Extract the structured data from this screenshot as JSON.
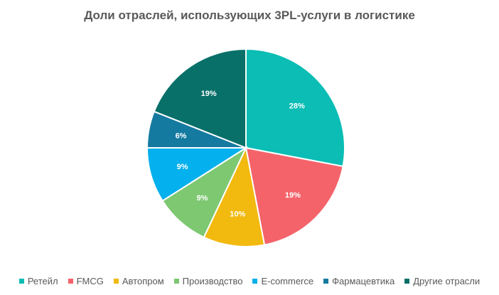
{
  "chart_data": {
    "type": "pie",
    "title": "Доли отраслей, использующих 3PL-услуги в логистике",
    "categories": [
      "Ретейл",
      "FMCG",
      "Автопром",
      "Производство",
      "E-commerce",
      "Фармацевтика",
      "Другие отрасли"
    ],
    "values": [
      28,
      19,
      10,
      9,
      9,
      6,
      19
    ],
    "labels": [
      "28%",
      "19%",
      "10%",
      "9%",
      "9%",
      "6%",
      "19%"
    ],
    "colors": [
      "#0bbdb4",
      "#f4636a",
      "#f2b90f",
      "#7dc871",
      "#04b0ed",
      "#157aa0",
      "#087069"
    ],
    "legend_position": "bottom",
    "start_angle_deg": 0,
    "direction": "clockwise"
  }
}
